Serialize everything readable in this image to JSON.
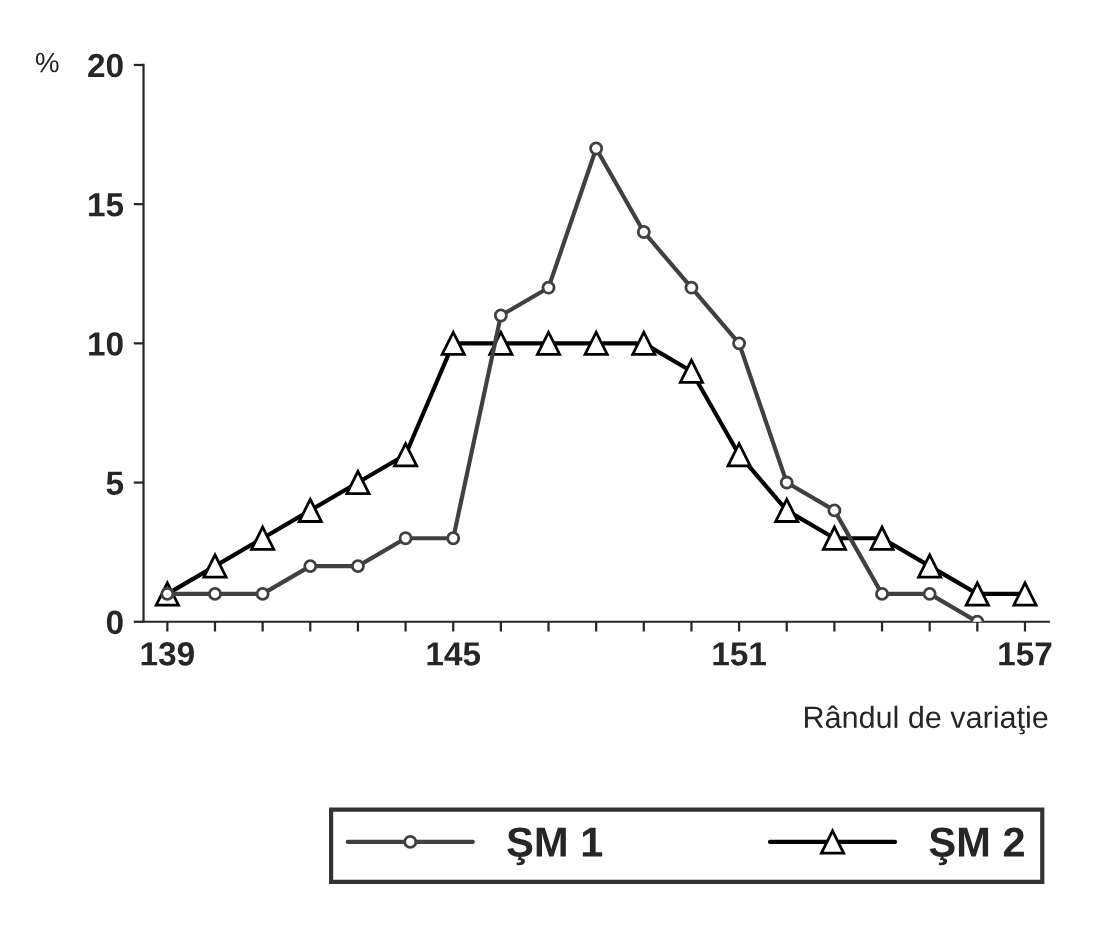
{
  "chart_data": {
    "type": "line",
    "ylabel": "%",
    "xlabel": "Rândul de variaţie",
    "x": [
      139,
      140,
      141,
      142,
      143,
      144,
      145,
      146,
      147,
      148,
      149,
      150,
      151,
      152,
      153,
      154,
      155,
      156,
      157
    ],
    "series": [
      {
        "name": "ŞM 1",
        "color": "#404040",
        "marker": "circle",
        "values": [
          1,
          1,
          1,
          2,
          2,
          3,
          3,
          11,
          12,
          17,
          14,
          12,
          10,
          5,
          4,
          1,
          1,
          0,
          null
        ]
      },
      {
        "name": "ŞM 2",
        "color": "#000000",
        "marker": "triangle",
        "values": [
          1,
          2,
          3,
          4,
          5,
          6,
          10,
          10,
          10,
          10,
          10,
          9,
          6,
          4,
          3,
          3,
          2,
          1,
          1
        ]
      }
    ],
    "xlim": [
      138.5,
      157.5
    ],
    "xticks": [
      139,
      {
        "value": 140,
        "label": null
      },
      {
        "value": 141,
        "label": null
      },
      {
        "value": 142,
        "label": null
      },
      {
        "value": 143,
        "label": null
      },
      {
        "value": 144,
        "label": null
      },
      145,
      {
        "value": 146,
        "label": null
      },
      {
        "value": 147,
        "label": null
      },
      {
        "value": 148,
        "label": null
      },
      {
        "value": 149,
        "label": null
      },
      {
        "value": 150,
        "label": null
      },
      151,
      {
        "value": 152,
        "label": null
      },
      {
        "value": 153,
        "label": null
      },
      {
        "value": 154,
        "label": null
      },
      {
        "value": 155,
        "label": null
      },
      {
        "value": 156,
        "label": null
      },
      157
    ],
    "ylim": [
      0,
      20
    ],
    "yticks": [
      0,
      5,
      10,
      15,
      20
    ],
    "grid": false,
    "legend": "bottom",
    "line_style": "solid"
  }
}
